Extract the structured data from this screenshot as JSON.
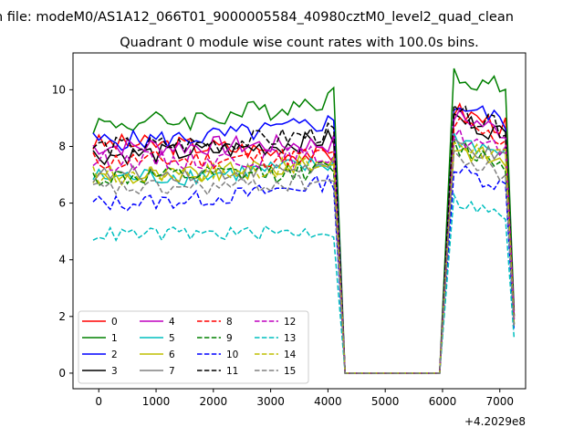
{
  "figure": {
    "suptitle": "n file: modeM0/AS1A12_066T01_9000005584_40980cztM0_level2_quad_clean",
    "title": "Quadrant 0 module wise count rates with 100.0s bins."
  },
  "chart_data": {
    "type": "line",
    "xlim": [
      -450,
      7450
    ],
    "ylim": [
      -0.55,
      11.3
    ],
    "x_offset_label": "+4.2029e8",
    "xticks": [
      0,
      1000,
      2000,
      3000,
      4000,
      5000,
      6000,
      7000
    ],
    "yticks": [
      0,
      2,
      4,
      6,
      8,
      10
    ],
    "xlabel": "",
    "ylabel": "",
    "grid": false,
    "legend": {
      "position": "lower-left",
      "columns": 4
    },
    "series": [
      {
        "name": "0",
        "color": "#ff0000",
        "dash": "solid",
        "level1": 8.1,
        "spread1": 0.35,
        "end1": 7.6,
        "level2": 8.9
      },
      {
        "name": "1",
        "color": "#008000",
        "dash": "solid",
        "level1": 8.8,
        "spread1": 0.4,
        "end1": 9.8,
        "level2": 10.2
      },
      {
        "name": "2",
        "color": "#0000ff",
        "dash": "solid",
        "level1": 8.2,
        "spread1": 0.35,
        "end1": 8.9,
        "level2": 9.1
      },
      {
        "name": "3",
        "color": "#000000",
        "dash": "solid",
        "level1": 7.7,
        "spread1": 0.35,
        "end1": 8.3,
        "level2": 8.6
      },
      {
        "name": "4",
        "color": "#bf00bf",
        "dash": "solid",
        "level1": 8.0,
        "spread1": 0.35,
        "end1": 8.1,
        "level2": 8.7
      },
      {
        "name": "5",
        "color": "#00bfbf",
        "dash": "solid",
        "level1": 6.9,
        "spread1": 0.35,
        "end1": 7.4,
        "level2": 7.9
      },
      {
        "name": "6",
        "color": "#bfbf00",
        "dash": "solid",
        "level1": 6.9,
        "spread1": 0.35,
        "end1": 7.5,
        "level2": 7.6
      },
      {
        "name": "7",
        "color": "#808080",
        "dash": "solid",
        "level1": 7.0,
        "spread1": 0.3,
        "end1": 7.3,
        "level2": 7.7
      },
      {
        "name": "8",
        "color": "#ff0000",
        "dash": "dashed",
        "level1": 7.5,
        "spread1": 0.35,
        "end1": 7.7,
        "level2": 8.4
      },
      {
        "name": "9",
        "color": "#008000",
        "dash": "dashed",
        "level1": 6.9,
        "spread1": 0.35,
        "end1": 7.2,
        "level2": 7.6
      },
      {
        "name": "10",
        "color": "#0000ff",
        "dash": "dashed",
        "level1": 6.0,
        "spread1": 0.3,
        "end1": 6.8,
        "level2": 6.8
      },
      {
        "name": "11",
        "color": "#000000",
        "dash": "dashed",
        "level1": 8.0,
        "spread1": 0.35,
        "end1": 8.5,
        "level2": 8.8
      },
      {
        "name": "12",
        "color": "#bf00bf",
        "dash": "dashed",
        "level1": 7.5,
        "spread1": 0.35,
        "end1": 7.7,
        "level2": 8.0
      },
      {
        "name": "13",
        "color": "#00bfbf",
        "dash": "dashed",
        "level1": 4.9,
        "spread1": 0.25,
        "end1": 5.0,
        "level2": 5.7
      },
      {
        "name": "14",
        "color": "#bfbf00",
        "dash": "dashed",
        "level1": 7.0,
        "spread1": 0.35,
        "end1": 7.4,
        "level2": 7.8
      },
      {
        "name": "15",
        "color": "#808080",
        "dash": "dashed",
        "level1": 6.5,
        "spread1": 0.3,
        "end1": 6.8,
        "level2": 7.2
      }
    ],
    "segments": {
      "active1": [
        -100,
        4150
      ],
      "gap": [
        4350,
        6000
      ],
      "active2": [
        6200,
        7250
      ],
      "bin": 100
    }
  }
}
